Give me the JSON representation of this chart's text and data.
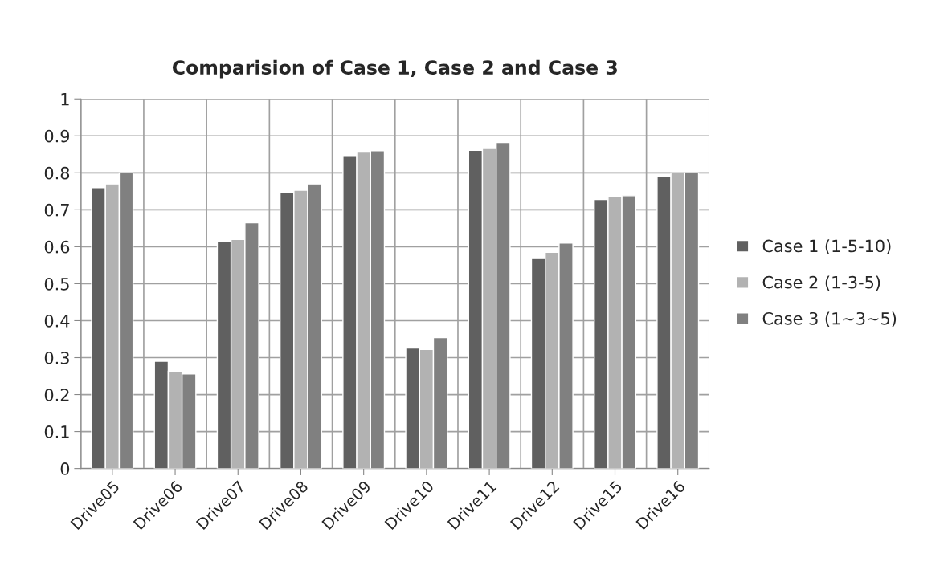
{
  "chart_data": {
    "type": "bar",
    "title": "Comparision of Case 1, Case 2 and Case 3",
    "categories": [
      "Drive05",
      "Drive06",
      "Drive07",
      "Drive08",
      "Drive09",
      "Drive10",
      "Drive11",
      "Drive12",
      "Drive15",
      "Drive16"
    ],
    "series": [
      {
        "name": "Case 1 (1-5-10)",
        "color": "#606060",
        "values": [
          0.76,
          0.29,
          0.613,
          0.746,
          0.847,
          0.326,
          0.861,
          0.568,
          0.728,
          0.791
        ]
      },
      {
        "name": "Case 2 (1-3-5)",
        "color": "#b2b2b2",
        "values": [
          0.77,
          0.263,
          0.62,
          0.753,
          0.858,
          0.322,
          0.868,
          0.585,
          0.735,
          0.8
        ]
      },
      {
        "name": "Case 3 (1~3~5)",
        "color": "#808080",
        "values": [
          0.8,
          0.256,
          0.665,
          0.77,
          0.86,
          0.354,
          0.882,
          0.61,
          0.738,
          0.8
        ]
      }
    ],
    "ylim": [
      0,
      1
    ],
    "yticks": [
      0,
      0.1,
      0.2,
      0.3,
      0.4,
      0.5,
      0.6,
      0.7,
      0.8,
      0.9,
      1
    ],
    "grid": true,
    "legend": "right"
  }
}
